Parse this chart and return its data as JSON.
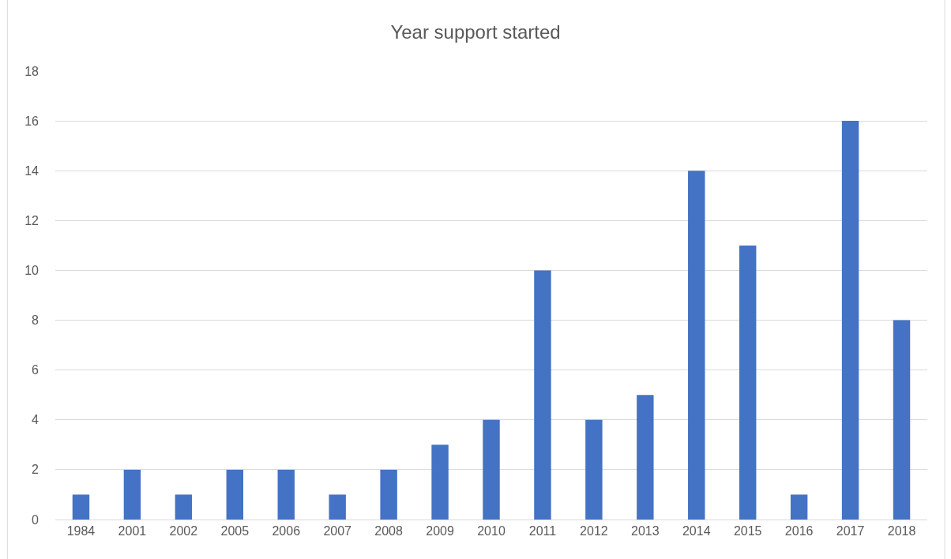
{
  "chart_data": {
    "type": "bar",
    "title": "Year support started",
    "categories": [
      "1984",
      "2001",
      "2002",
      "2005",
      "2006",
      "2007",
      "2008",
      "2009",
      "2010",
      "2011",
      "2012",
      "2013",
      "2014",
      "2015",
      "2016",
      "2017",
      "2018"
    ],
    "values": [
      1,
      2,
      1,
      2,
      2,
      1,
      2,
      3,
      4,
      10,
      4,
      5,
      14,
      11,
      1,
      16,
      8
    ],
    "color": "#4472c4",
    "ylim": [
      0,
      18
    ],
    "yticks": [
      0,
      2,
      4,
      6,
      8,
      10,
      12,
      14,
      16,
      18
    ],
    "grid": "y",
    "legend": false
  }
}
